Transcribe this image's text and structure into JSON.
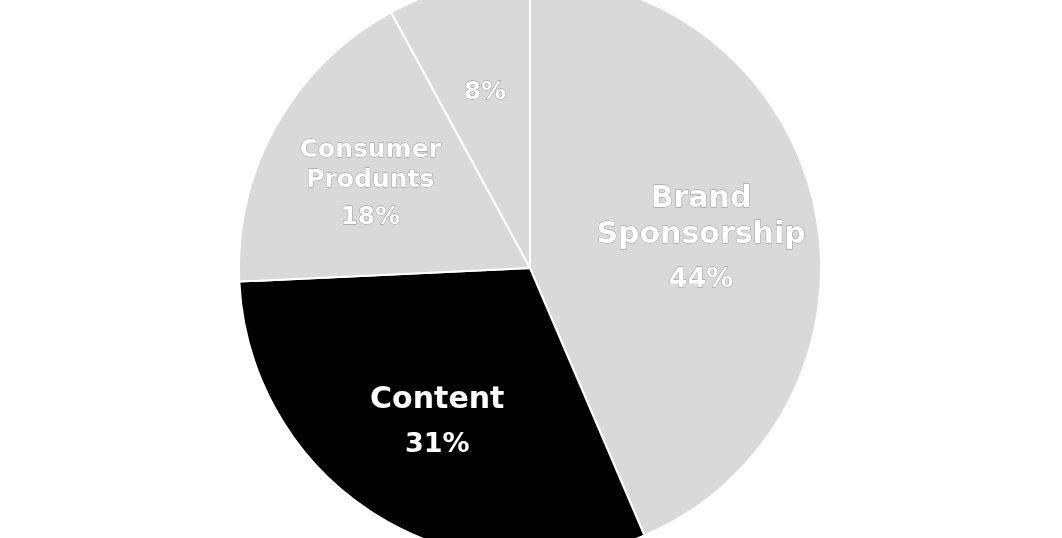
{
  "chart_data": {
    "type": "pie",
    "categories": [
      "Brand Sponsorship",
      "Content",
      "Consumer Produnts",
      null
    ],
    "values": [
      44,
      31,
      18,
      8
    ],
    "value_labels": [
      "44%",
      "31%",
      "18%",
      "8%"
    ],
    "colors": [
      "#d9d9d9",
      "#000000",
      "#d9d9d9",
      "#d9d9d9"
    ]
  }
}
